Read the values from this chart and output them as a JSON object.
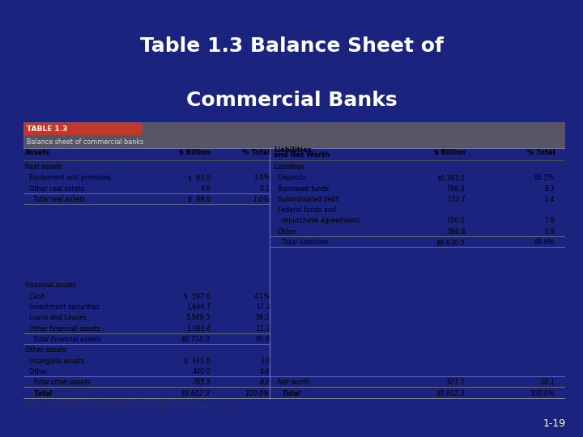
{
  "title_line1": "Table 1.3 Balance Sheet of",
  "title_line2": "Commercial Banks",
  "title_color": "#FFFFFF",
  "bg_color": "#1a237e",
  "table_header_bg": "#c0392b",
  "table_subheader_bg": "#555565",
  "table_body_bg": "#e8e8ec",
  "table_label": "TABLE 1.3",
  "table_sublabel": "Balance sheet of commercial banks",
  "note_line1": "Note:  Column sums may differ from totals because of rounding error.",
  "note_line2": "Source:  Federal Deposit Insurance Corporation, www.fdic.gov, September 2005.",
  "page_num": "1-19",
  "left_rows": [
    [
      "Real assets",
      "",
      "",
      "normal",
      "normal"
    ],
    [
      "  Equipment and premises",
      "$  93.9",
      "1.0%",
      "normal",
      "normal"
    ],
    [
      "  Other real estate",
      "4.9",
      "0.1",
      "normal",
      "normal"
    ],
    [
      "    Total real assets",
      "$  98.8",
      "1.0%",
      "italic",
      "normal"
    ],
    [
      "",
      "",
      "",
      "normal",
      "normal"
    ],
    [
      "",
      "",
      "",
      "normal",
      "normal"
    ],
    [
      "",
      "",
      "",
      "normal",
      "normal"
    ],
    [
      "",
      "",
      "",
      "normal",
      "normal"
    ],
    [
      "",
      "",
      "",
      "normal",
      "normal"
    ],
    [
      "",
      "",
      "",
      "normal",
      "normal"
    ],
    [
      "",
      "",
      "",
      "normal",
      "normal"
    ],
    [
      "Financial assets",
      "",
      "",
      "normal",
      "normal"
    ],
    [
      "  Cash",
      "$  397.6",
      "4.1%",
      "normal",
      "normal"
    ],
    [
      "  Investment securities",
      "1,648.7",
      "17.2",
      "normal",
      "normal"
    ],
    [
      "  Loans and Leases",
      "5,589.3",
      "58.2",
      "normal",
      "normal"
    ],
    [
      "  Other financial assets",
      "1,082.4",
      "11.3",
      "normal",
      "normal"
    ],
    [
      "    Total financial assets",
      "$8,718.0",
      "90.8",
      "italic",
      "normal"
    ],
    [
      "Other assets",
      "",
      "",
      "normal",
      "normal"
    ],
    [
      "  Intangible assets",
      "$  345.6",
      "3.6",
      "normal",
      "normal"
    ],
    [
      "  Other",
      "440.0",
      "4.6",
      "normal",
      "normal"
    ],
    [
      "    Total other assets",
      "785.5",
      "8.2",
      "italic",
      "normal"
    ],
    [
      "    Total",
      "$9,602.3",
      "100.0%",
      "italic",
      "bold"
    ]
  ],
  "right_rows": [
    [
      "Liabilities",
      "",
      "",
      "normal",
      "normal"
    ],
    [
      "  Deposits",
      "$6,383.0",
      "66.5%",
      "normal",
      "normal"
    ],
    [
      "  Borrowed funds",
      "798.0",
      "8.3",
      "normal",
      "normal"
    ],
    [
      "  Subordinated debt",
      "132.7",
      "1.4",
      "normal",
      "normal"
    ],
    [
      "  Federal funds and",
      "",
      "",
      "normal",
      "normal"
    ],
    [
      "    repurchase agreements",
      "750.0",
      "7.8",
      "normal",
      "normal"
    ],
    [
      "  Other",
      "566.8",
      "5.9",
      "normal",
      "normal"
    ],
    [
      "    Total liabilities",
      "$8,630.5",
      "89.9%",
      "italic",
      "normal"
    ],
    [
      "",
      "",
      "",
      "normal",
      "normal"
    ],
    [
      "",
      "",
      "",
      "normal",
      "normal"
    ],
    [
      "",
      "",
      "",
      "normal",
      "normal"
    ],
    [
      "",
      "",
      "",
      "normal",
      "normal"
    ],
    [
      "",
      "",
      "",
      "normal",
      "normal"
    ],
    [
      "",
      "",
      "",
      "normal",
      "normal"
    ],
    [
      "",
      "",
      "",
      "normal",
      "normal"
    ],
    [
      "",
      "",
      "",
      "normal",
      "normal"
    ],
    [
      "",
      "",
      "",
      "normal",
      "normal"
    ],
    [
      "",
      "",
      "",
      "normal",
      "normal"
    ],
    [
      "",
      "",
      "",
      "normal",
      "normal"
    ],
    [
      "",
      "",
      "",
      "normal",
      "normal"
    ],
    [
      "  Net worth",
      "971.7",
      "10.1",
      "italic",
      "normal"
    ],
    [
      "    Total",
      "$9,602.3",
      "100.0%",
      "italic",
      "bold"
    ]
  ],
  "underline_left_rows": [
    2,
    3,
    15,
    16,
    19,
    20,
    21
  ],
  "underline_right_rows": [
    6,
    7,
    19,
    20,
    21
  ]
}
